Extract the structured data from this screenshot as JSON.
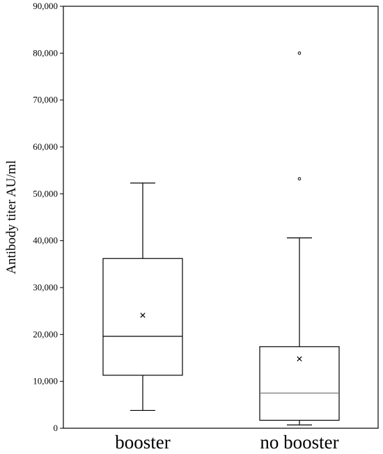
{
  "chart_data": {
    "type": "boxplot",
    "title": "",
    "xlabel": "",
    "ylabel": "Antibody titer  AU/ml",
    "ylim": [
      0,
      90000
    ],
    "yticks": [
      0,
      10000,
      20000,
      30000,
      40000,
      50000,
      60000,
      70000,
      80000,
      90000
    ],
    "ytick_labels": [
      "0",
      "10,000",
      "20,000",
      "30,000",
      "40,000",
      "50,000",
      "60,000",
      "70,000",
      "80,000",
      "90,000"
    ],
    "grid": false,
    "categories": [
      "booster",
      "no booster"
    ],
    "boxes": [
      {
        "label": "booster",
        "whisker_low": 3800,
        "q1": 11300,
        "median": 19600,
        "q3": 36200,
        "whisker_high": 52300,
        "mean": 24100,
        "outliers": []
      },
      {
        "label": "no booster",
        "whisker_low": 700,
        "q1": 1700,
        "median": 7500,
        "q3": 17400,
        "whisker_high": 40600,
        "mean": 14800,
        "outliers": [
          53200,
          80000
        ]
      }
    ]
  }
}
